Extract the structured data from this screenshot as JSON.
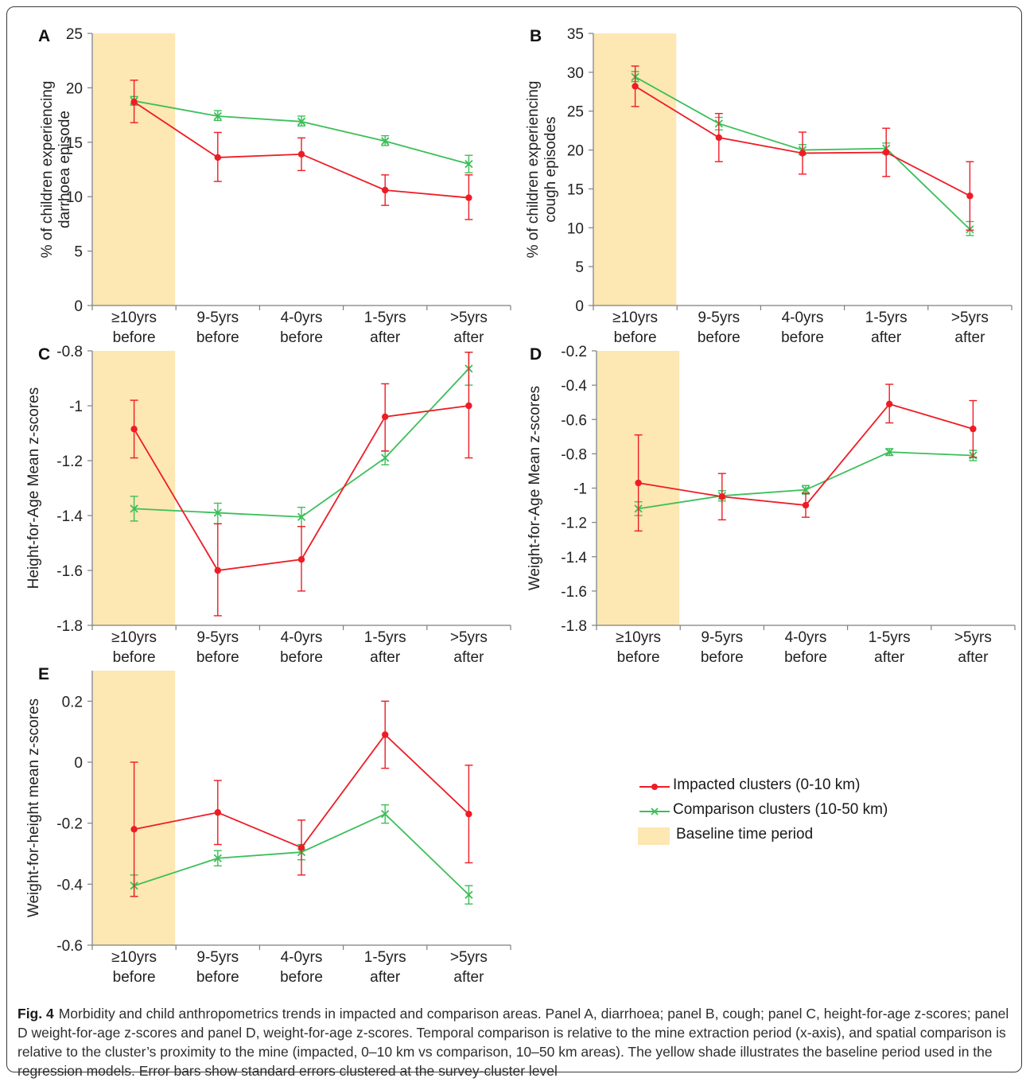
{
  "figure": {
    "fig_label": "Fig. 4",
    "caption": "Morbidity and child anthropometrics trends in impacted and comparison areas. Panel A, diarrhoea; panel B, cough; panel C, height-for-age z-scores; panel D weight-for-age z-scores and panel D, weight-for-age z-scores. Temporal comparison is relative to the mine extraction period (x-axis), and spatial comparison is relative to the cluster’s proximity to the mine (impacted, 0–10 km vs comparison, 10–50 km areas). The yellow shade illustrates the baseline period used in the regression models. Error bars show standard errors clustered at the survey-cluster level"
  },
  "legend": {
    "impacted": "Impacted clusters (0-10 km)",
    "comparison": "Comparison clusters (10-50 km)",
    "baseline": "Baseline time period"
  },
  "colors": {
    "impacted": "#ee1c25",
    "comparison": "#3cbf5a",
    "baseline": "#fde7b2",
    "axis": "#7f7f7f"
  },
  "chart_data": [
    {
      "panel": "A",
      "type": "line",
      "ylabel": "% of children experiencing darrhoea episode",
      "ylim": [
        0,
        25
      ],
      "yticks": [
        0,
        5,
        10,
        15,
        20,
        25
      ],
      "categories": [
        "≥10yrs before",
        "9-5yrs before",
        "4-0yrs before",
        "1-5yrs after",
        ">5yrs after"
      ],
      "baseline_category": "≥10yrs before",
      "series": [
        {
          "name": "Impacted clusters (0-10 km)",
          "values": [
            18.7,
            13.6,
            13.9,
            10.6,
            9.9
          ],
          "err_low": [
            16.8,
            11.4,
            12.4,
            9.2,
            7.9
          ],
          "err_high": [
            20.7,
            15.9,
            15.4,
            12.0,
            12.0
          ]
        },
        {
          "name": "Comparison clusters (10-50 km)",
          "values": [
            18.8,
            17.4,
            16.9,
            15.1,
            13.0
          ],
          "err_low": [
            18.4,
            17.0,
            16.5,
            14.7,
            12.2
          ],
          "err_high": [
            19.2,
            17.9,
            17.4,
            15.6,
            13.8
          ]
        }
      ]
    },
    {
      "panel": "B",
      "type": "line",
      "ylabel": "% of children experiencing cough episodes",
      "ylim": [
        0,
        35
      ],
      "yticks": [
        0,
        5,
        10,
        15,
        20,
        25,
        30,
        35
      ],
      "categories": [
        "≥10yrs before",
        "9-5yrs before",
        "4-0yrs before",
        "1-5yrs after",
        ">5yrs after"
      ],
      "baseline_category": "≥10yrs before",
      "series": [
        {
          "name": "Impacted clusters (0-10 km)",
          "values": [
            28.2,
            21.6,
            19.6,
            19.7,
            14.1
          ],
          "err_low": [
            25.6,
            18.5,
            16.9,
            16.6,
            9.7
          ],
          "err_high": [
            30.8,
            24.7,
            22.3,
            22.8,
            18.5
          ]
        },
        {
          "name": "Comparison clusters (10-50 km)",
          "values": [
            29.4,
            23.4,
            20.0,
            20.2,
            9.8
          ],
          "err_low": [
            28.8,
            22.6,
            19.4,
            19.5,
            9.0
          ],
          "err_high": [
            30.1,
            24.2,
            20.7,
            20.9,
            10.8
          ]
        }
      ]
    },
    {
      "panel": "C",
      "type": "line",
      "ylabel": "Height-for-Age Mean z-scores",
      "ylim": [
        -1.8,
        -0.8
      ],
      "yticks": [
        -1.8,
        -1.6,
        -1.4,
        -1.2,
        -1,
        -0.8
      ],
      "categories": [
        "≥10yrs before",
        "9-5yrs before",
        "4-0yrs before",
        "1-5yrs after",
        ">5yrs after"
      ],
      "baseline_category": "≥10yrs before",
      "series": [
        {
          "name": "Impacted clusters (0-10 km)",
          "values": [
            -1.085,
            -1.6,
            -1.56,
            -1.04,
            -1.0
          ],
          "err_low": [
            -1.19,
            -1.765,
            -1.675,
            -1.165,
            -1.19
          ],
          "err_high": [
            -0.98,
            -1.43,
            -1.44,
            -0.92,
            -0.805
          ]
        },
        {
          "name": "Comparison clusters (10-50 km)",
          "values": [
            -1.375,
            -1.39,
            -1.405,
            -1.19,
            -0.865
          ],
          "err_low": [
            -1.42,
            -1.43,
            -1.44,
            -1.215,
            -0.925
          ],
          "err_high": [
            -1.33,
            -1.355,
            -1.37,
            -1.165,
            -0.805
          ]
        }
      ]
    },
    {
      "panel": "D",
      "type": "line",
      "ylabel": "Weight-for-Age Mean z-scores",
      "ylim": [
        -1.8,
        -0.2
      ],
      "yticks": [
        -1.8,
        -1.6,
        -1.4,
        -1.2,
        -1,
        -0.8,
        -0.6,
        -0.4,
        -0.2
      ],
      "categories": [
        "≥10yrs before",
        "9-5yrs before",
        "4-0yrs before",
        "1-5yrs after",
        ">5yrs after"
      ],
      "baseline_category": "≥10yrs before",
      "series": [
        {
          "name": "Impacted clusters (0-10 km)",
          "values": [
            -0.97,
            -1.05,
            -1.1,
            -0.51,
            -0.655
          ],
          "err_low": [
            -1.25,
            -1.185,
            -1.17,
            -0.62,
            -0.82
          ],
          "err_high": [
            -0.69,
            -0.915,
            -1.03,
            -0.395,
            -0.49
          ]
        },
        {
          "name": "Comparison clusters (10-50 km)",
          "values": [
            -1.12,
            -1.045,
            -1.01,
            -0.79,
            -0.81
          ],
          "err_low": [
            -1.16,
            -1.075,
            -1.035,
            -0.81,
            -0.84
          ],
          "err_high": [
            -1.08,
            -1.015,
            -0.985,
            -0.77,
            -0.78
          ]
        }
      ]
    },
    {
      "panel": "E",
      "type": "line",
      "ylabel": "Weight-for-height mean z-scores",
      "ylim": [
        -0.6,
        0.3
      ],
      "yticks": [
        -0.6,
        -0.4,
        -0.2,
        0,
        0.2
      ],
      "categories": [
        "≥10yrs before",
        "9-5yrs before",
        "4-0yrs before",
        "1-5yrs after",
        ">5yrs after"
      ],
      "baseline_category": "≥10yrs before",
      "series": [
        {
          "name": "Impacted clusters (0-10 km)",
          "values": [
            -0.22,
            -0.165,
            -0.28,
            0.09,
            -0.17
          ],
          "err_low": [
            -0.44,
            -0.27,
            -0.37,
            -0.02,
            -0.33
          ],
          "err_high": [
            0.0,
            -0.06,
            -0.19,
            0.2,
            -0.01
          ]
        },
        {
          "name": "Comparison clusters (10-50 km)",
          "values": [
            -0.405,
            -0.315,
            -0.295,
            -0.17,
            -0.435
          ],
          "err_low": [
            -0.44,
            -0.34,
            -0.32,
            -0.2,
            -0.465
          ],
          "err_high": [
            -0.37,
            -0.29,
            -0.27,
            -0.14,
            -0.405
          ]
        }
      ]
    }
  ]
}
